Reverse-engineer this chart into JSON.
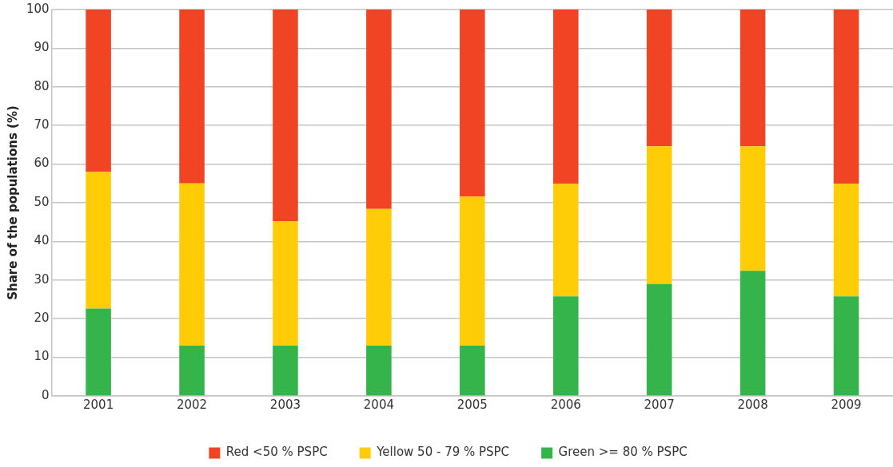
{
  "chart_data": {
    "type": "bar",
    "stacked": true,
    "ylabel": "Share of the populations (%)",
    "categories": [
      "2001",
      "2002",
      "2003",
      "2004",
      "2005",
      "2006",
      "2007",
      "2008",
      "2009"
    ],
    "series": [
      {
        "name": "Green >= 80 % PSPC",
        "color": "#34b44a",
        "values": [
          22.6,
          13,
          13,
          13,
          13,
          25.8,
          29,
          32.4,
          25.8
        ]
      },
      {
        "name": "Yellow 50 - 79 % PSPC",
        "color": "#fecd08",
        "values": [
          35.4,
          42,
          32.2,
          35.4,
          38.6,
          29.1,
          35.6,
          32.2,
          29.1
        ]
      },
      {
        "name": "Red <50 % PSPC",
        "color": "#f04425",
        "values": [
          42,
          45,
          54.8,
          51.6,
          48.4,
          45.1,
          35.4,
          35.4,
          45.1
        ]
      }
    ],
    "ylim": [
      0,
      100
    ],
    "yticks": [
      0,
      10,
      20,
      30,
      40,
      50,
      60,
      70,
      80,
      90,
      100
    ],
    "grid": "y",
    "legend": "bottom"
  }
}
